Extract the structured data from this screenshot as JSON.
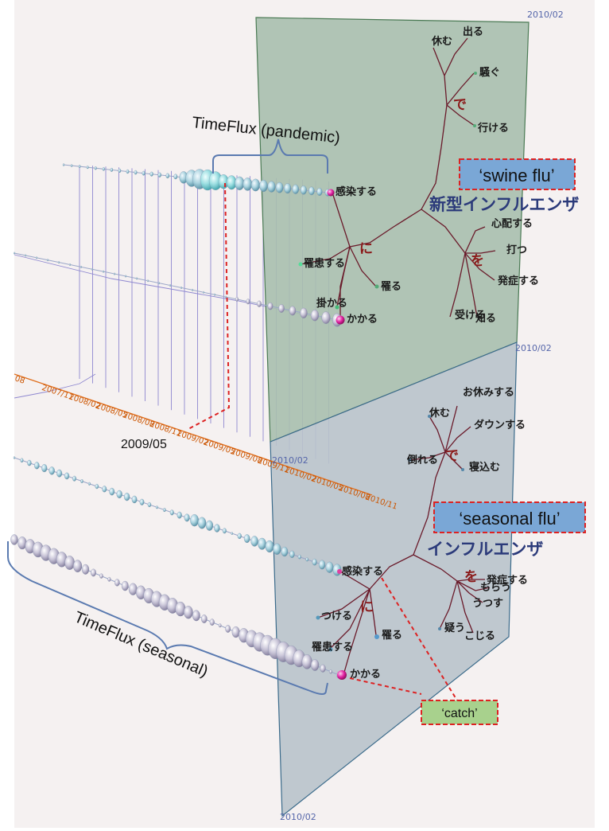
{
  "panels": {
    "pandemic": {
      "head": "新型インフルエンザ",
      "tag": "‘swine flu’",
      "date_top": "2010/02",
      "date_bottom": "2010/02",
      "nodes": {
        "de": "で",
        "de_1": "休む",
        "de_2": "出る",
        "de_3": "騒ぐ",
        "de_4": "行ける",
        "ni": "に",
        "ni_1": "感染する",
        "ni_2": "罹患する",
        "ni_3": "罹る",
        "ni_4": "掛かる",
        "ni_5": "かかる",
        "wo": "を",
        "wo_1": "心配する",
        "wo_2": "打つ",
        "wo_3": "発症する",
        "wo_4": "受ける",
        "wo_5": "知る"
      }
    },
    "seasonal": {
      "head": "インフルエンザ",
      "tag": "‘seasonal flu’",
      "date_top": "2010/02",
      "date_bottom": "2010/02",
      "nodes": {
        "de": "で",
        "de_1": "お休みする",
        "de_2": "休む",
        "de_3": "ダウンする",
        "de_4": "倒れる",
        "de_5": "寝込む",
        "ni": "に",
        "ni_1": "感染する",
        "ni_2": "つける",
        "ni_3": "罹る",
        "ni_4": "罹患する",
        "ni_5": "かかる",
        "wo": "を",
        "wo_1": "発症する",
        "wo_2": "うつす",
        "wo_3": "疑う",
        "wo_4": "こじる",
        "wo_5": "もらう"
      }
    }
  },
  "timeline": {
    "dates": [
      "08",
      "2007/11",
      "2008/02",
      "2008/05",
      "2008/08",
      "2008/11",
      "2009/02",
      "2009/05",
      "2009/08",
      "2009/11",
      "2010/02",
      "2010/05",
      "2010/08",
      "2010/11"
    ]
  },
  "annotations": {
    "timeflux_pandemic": "TimeFlux (pandemic)",
    "timeflux_seasonal": "TimeFlux (seasonal)",
    "date_marker": "2009/05",
    "catch": "‘catch’"
  },
  "colors": {
    "panel_top": "#a9bfae",
    "panel_bottom": "#b9c3cb",
    "timeline": "#e07020",
    "head": "#2b3a7a",
    "highlight": "#dd2222",
    "tag_bg": "#7aa7d6",
    "catch_bg": "#a8d18d"
  }
}
